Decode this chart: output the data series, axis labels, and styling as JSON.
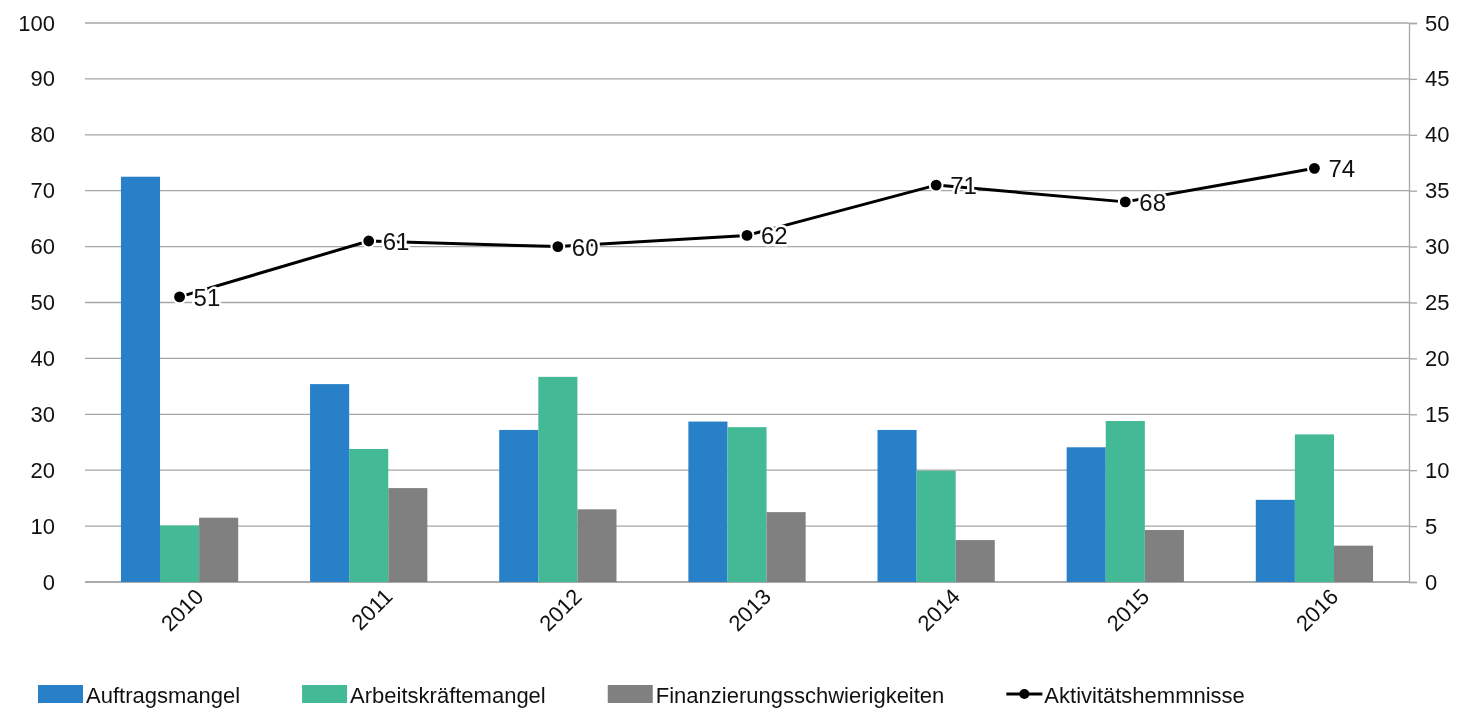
{
  "chart_data": {
    "type": "bar",
    "categories": [
      "2010",
      "2011",
      "2012",
      "2013",
      "2014",
      "2015",
      "2016"
    ],
    "series": [
      {
        "name": "Auftragsmangel",
        "color": "#2780c8",
        "values": [
          72.5,
          35.4,
          27.2,
          28.7,
          27.2,
          24.1,
          14.7
        ]
      },
      {
        "name": "Arbeitskräftemangel",
        "color": "#43b996",
        "values": [
          10.1,
          23.8,
          36.7,
          27.7,
          19.9,
          28.8,
          26.4
        ]
      },
      {
        "name": "Finanzierungsschwierigkeiten",
        "color": "#808080",
        "values": [
          11.5,
          16.8,
          13.0,
          12.5,
          7.5,
          9.3,
          6.5
        ]
      },
      {
        "name": "Aktivitätshemmnisse",
        "type": "line",
        "color": "#000000",
        "marker": "circle",
        "values": [
          51,
          61,
          60,
          62,
          71,
          68,
          74
        ],
        "value_labels": [
          "51",
          "61",
          "60",
          "62",
          "71",
          "68",
          "74"
        ]
      }
    ],
    "ylim": [
      0,
      100
    ],
    "yticks": [
      0,
      10,
      20,
      30,
      40,
      50,
      60,
      70,
      80,
      90,
      100
    ],
    "y2lim": [
      0,
      50
    ],
    "y2ticks": [
      0,
      5,
      10,
      15,
      20,
      25,
      30,
      35,
      40,
      45,
      50
    ],
    "grid": "y",
    "legend": "bottom"
  }
}
